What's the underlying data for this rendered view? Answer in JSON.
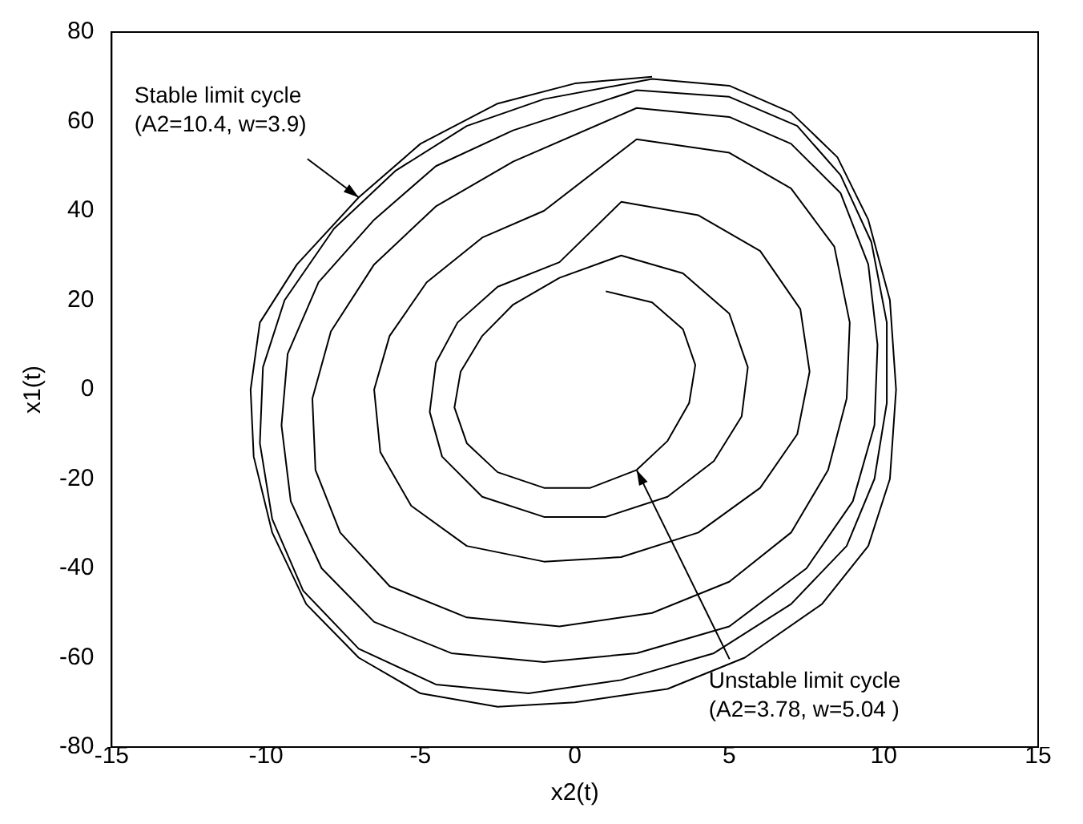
{
  "chart_data": {
    "type": "line",
    "xlabel": "x2(t)",
    "ylabel": "x1(t)",
    "xlim": [
      -15,
      15
    ],
    "ylim": [
      -80,
      80
    ],
    "xticks": [
      -15,
      -10,
      -5,
      0,
      5,
      10,
      15
    ],
    "yticks": [
      -80,
      -60,
      -40,
      -20,
      0,
      20,
      40,
      60,
      80
    ],
    "grid": false,
    "legend": false,
    "marker": "none",
    "line_style": "solid",
    "series": [
      {
        "color": "#000000",
        "x": [
          1,
          2.5,
          3.5,
          3.9,
          3.7,
          3,
          2,
          0.5,
          -1,
          -2.5,
          -3.5,
          -3.9,
          -3.7,
          -3,
          -2,
          -0.5,
          1.5,
          3.5,
          5,
          5.6,
          5.4,
          4.5,
          3,
          1,
          -1,
          -3,
          -4.3,
          -4.7,
          -4.5,
          -3.8,
          -2.5,
          -0.5,
          1.5,
          4,
          6,
          7.3,
          7.6,
          7.2,
          6,
          4,
          1.5,
          -1,
          -3.5,
          -5.3,
          -6.3,
          -6.5,
          -6,
          -4.8,
          -3,
          -1,
          2,
          5,
          7,
          8.4,
          8.9,
          8.8,
          8.2,
          7,
          5,
          2.5,
          -0.5,
          -3.5,
          -6,
          -7.6,
          -8.4,
          -8.5,
          -7.9,
          -6.5,
          -4.5,
          -2,
          2,
          5,
          7,
          8.6,
          9.5,
          9.8,
          9.7,
          9,
          7.5,
          5,
          2,
          -1,
          -4,
          -6.5,
          -8.2,
          -9.2,
          -9.5,
          -9.3,
          -8.3,
          -6.5,
          -4.5,
          -2,
          2,
          5,
          7.2,
          8.6,
          9.6,
          10.1,
          10.1,
          9.7,
          8.8,
          7,
          4.5,
          1.5,
          -1.5,
          -4.5,
          -7,
          -8.8,
          -9.8,
          -10.2,
          -10.1,
          -9.4,
          -7.8,
          -5.8,
          -3.5,
          -1,
          2.5,
          5,
          7,
          8.5,
          9.5,
          10.2,
          10.4,
          10.2,
          9.5,
          8,
          5.5,
          3,
          0,
          -2.5,
          -5,
          -7,
          -8.7,
          -9.8,
          -10.4,
          -10.5,
          -10.2,
          -9,
          -7,
          -5,
          -2.5,
          0,
          2.5
        ],
        "values": [
          22,
          19.5,
          13.5,
          5.5,
          -3,
          -11.5,
          -18,
          -22,
          -22,
          -18.5,
          -12,
          -4,
          4,
          12,
          19,
          25,
          30,
          26,
          17,
          5,
          -6,
          -16,
          -24,
          -28.5,
          -28.5,
          -24,
          -15,
          -5,
          6,
          15,
          23,
          28.5,
          42,
          39,
          31,
          18,
          4,
          -10,
          -22,
          -32,
          -37.5,
          -38.5,
          -35,
          -26,
          -14,
          0,
          12,
          24,
          34,
          40,
          56,
          53,
          45,
          32,
          15,
          -2,
          -18,
          -32,
          -43,
          -50,
          -53,
          -51,
          -44,
          -32,
          -18,
          -2,
          13,
          28,
          41,
          51,
          63,
          61,
          55,
          44,
          28,
          10,
          -8,
          -25,
          -40,
          -53,
          -59,
          -61,
          -59,
          -52,
          -40,
          -25,
          -8,
          8,
          24,
          38,
          50,
          58,
          67,
          65.5,
          59,
          48,
          33,
          15,
          -3,
          -20,
          -35,
          -48,
          -59,
          -65,
          -68,
          -66,
          -58,
          -45,
          -29,
          -12,
          5,
          20,
          36,
          49,
          59,
          65,
          69.5,
          68,
          62,
          52,
          38,
          20,
          0,
          -20,
          -35,
          -48,
          -60,
          -67,
          -70,
          -71,
          -68,
          -60,
          -48,
          -32,
          -15,
          0,
          15,
          28,
          43,
          55,
          64,
          68.5,
          70
        ]
      }
    ],
    "annotations": [
      {
        "text": "Stable limit cycle\n(A2=10.4, w=3.9)",
        "x": -7,
        "y": 43
      },
      {
        "text": "Unstable limit cycle\n(A2=3.78, w=5.04 )",
        "x": 2,
        "y": -18
      }
    ]
  }
}
